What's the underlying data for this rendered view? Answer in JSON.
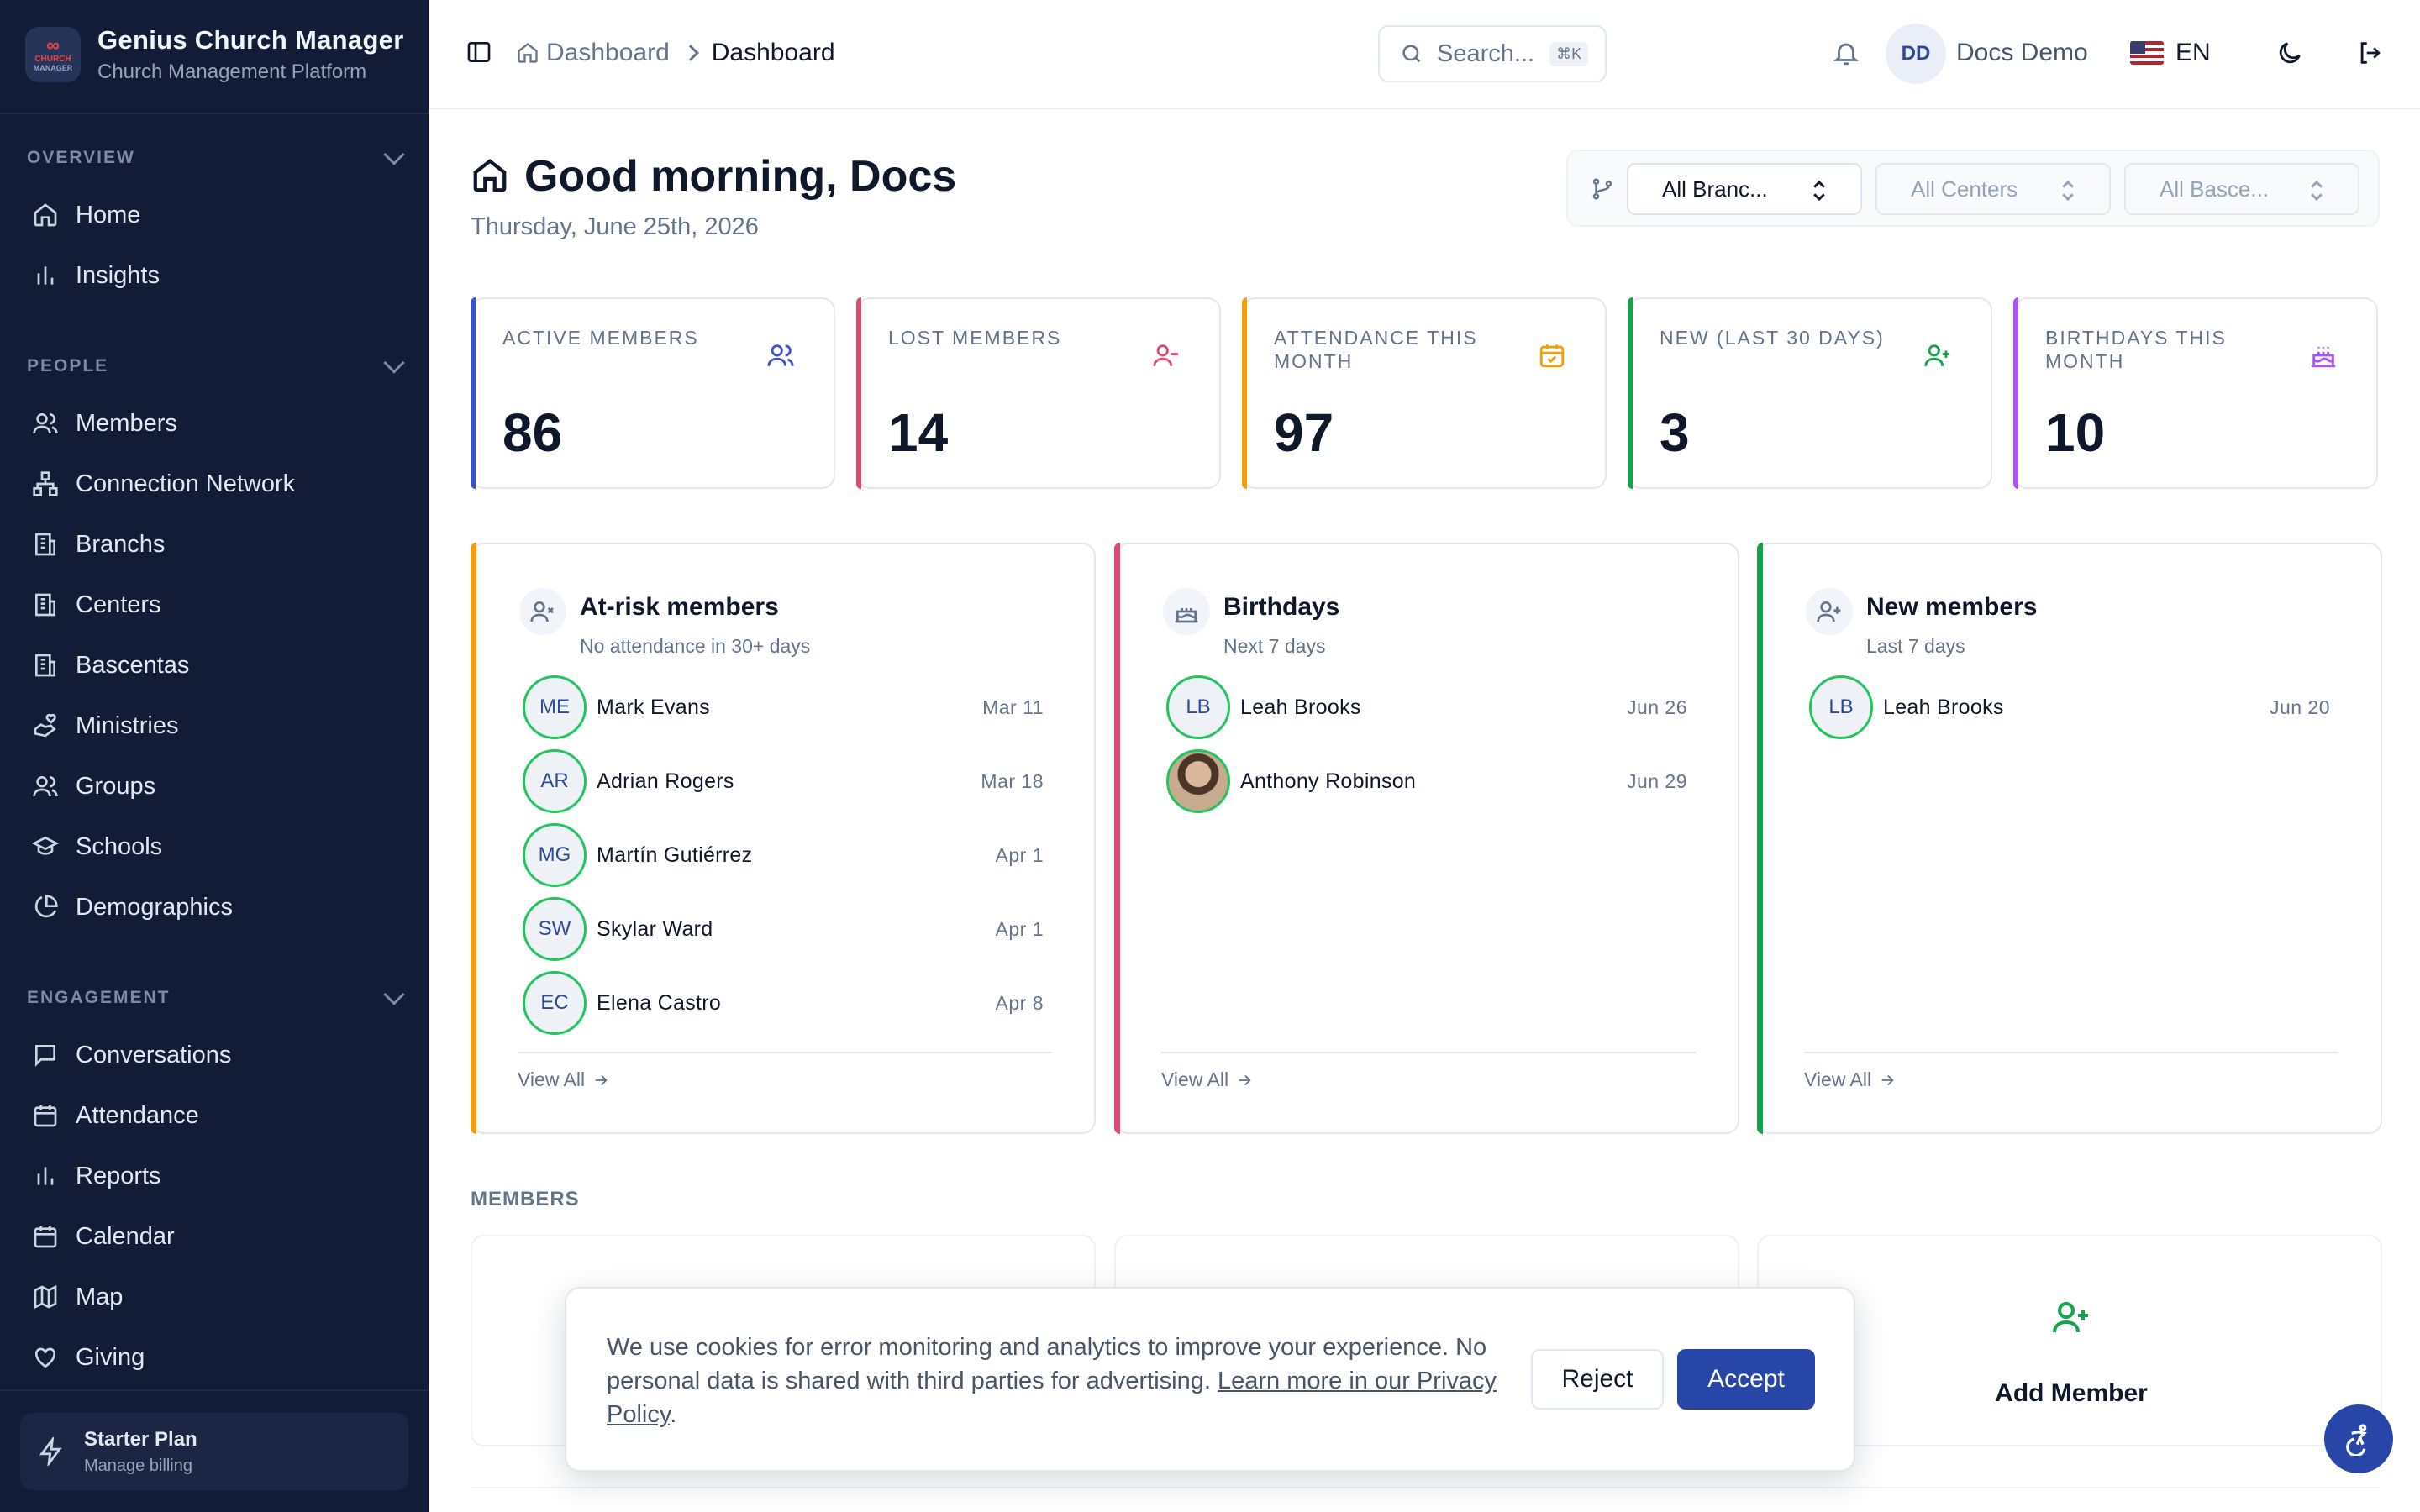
{
  "app": {
    "title": "Genius Church Manager",
    "subtitle": "Church Management Platform",
    "logo_top": "CHURCH",
    "logo_bottom": "MANAGER"
  },
  "sidebar": {
    "sections": [
      {
        "title": "OVERVIEW",
        "items": [
          {
            "label": "Home",
            "icon": "home-icon"
          },
          {
            "label": "Insights",
            "icon": "bar-chart-icon"
          }
        ]
      },
      {
        "title": "PEOPLE",
        "items": [
          {
            "label": "Members",
            "icon": "users-icon"
          },
          {
            "label": "Connection Network",
            "icon": "network-icon"
          },
          {
            "label": "Branchs",
            "icon": "building-icon"
          },
          {
            "label": "Centers",
            "icon": "building-icon"
          },
          {
            "label": "Bascentas",
            "icon": "building-icon"
          },
          {
            "label": "Ministries",
            "icon": "hand-heart-icon"
          },
          {
            "label": "Groups",
            "icon": "users-icon"
          },
          {
            "label": "Schools",
            "icon": "graduation-cap-icon"
          },
          {
            "label": "Demographics",
            "icon": "pie-chart-icon"
          }
        ]
      },
      {
        "title": "ENGAGEMENT",
        "items": [
          {
            "label": "Conversations",
            "icon": "message-icon"
          },
          {
            "label": "Attendance",
            "icon": "calendar-check-icon"
          },
          {
            "label": "Reports",
            "icon": "bar-chart-icon"
          },
          {
            "label": "Calendar",
            "icon": "calendar-icon"
          },
          {
            "label": "Map",
            "icon": "map-icon"
          },
          {
            "label": "Giving",
            "icon": "heart-icon"
          }
        ]
      }
    ],
    "plan": {
      "title": "Starter Plan",
      "subtitle": "Manage billing"
    }
  },
  "header": {
    "breadcrumb": [
      "Dashboard",
      "Dashboard"
    ],
    "search_placeholder": "Search...",
    "search_shortcut": "⌘K",
    "user_initials": "DD",
    "user_name": "Docs Demo",
    "language": "EN"
  },
  "greeting": {
    "title": "Good morning, Docs",
    "date": "Thursday, June 25th, 2026"
  },
  "filters": [
    "All Branc...",
    "All Centers",
    "All Basce..."
  ],
  "stats": [
    {
      "label": "ACTIVE MEMBERS",
      "value": "86",
      "color": "#3b55c9",
      "icon": "users-icon"
    },
    {
      "label": "LOST MEMBERS",
      "value": "14",
      "color": "#e04870",
      "icon": "user-minus-icon"
    },
    {
      "label": "ATTENDANCE THIS MONTH",
      "value": "97",
      "color": "#f59e0b",
      "icon": "calendar-check-icon"
    },
    {
      "label": "NEW (LAST 30 DAYS)",
      "value": "3",
      "color": "#16a34a",
      "icon": "user-plus-icon"
    },
    {
      "label": "BIRTHDAYS THIS MONTH",
      "value": "10",
      "color": "#a855f7",
      "icon": "cake-icon"
    }
  ],
  "cards": [
    {
      "title": "At-risk members",
      "subtitle": "No attendance in 30+ days",
      "color": "#f59e0b",
      "icon": "user-x-icon",
      "view_all": "View All",
      "rows": [
        {
          "initials": "ME",
          "name": "Mark Evans",
          "date": "Mar 11"
        },
        {
          "initials": "AR",
          "name": "Adrian Rogers",
          "date": "Mar 18"
        },
        {
          "initials": "MG",
          "name": "Martín Gutiérrez",
          "date": "Apr 1"
        },
        {
          "initials": "SW",
          "name": "Skylar Ward",
          "date": "Apr 1"
        },
        {
          "initials": "EC",
          "name": "Elena Castro",
          "date": "Apr 8"
        }
      ]
    },
    {
      "title": "Birthdays",
      "subtitle": "Next 7 days",
      "color": "#e0457b",
      "icon": "cake-icon",
      "view_all": "View All",
      "rows": [
        {
          "initials": "LB",
          "name": "Leah Brooks",
          "date": "Jun 26"
        },
        {
          "initials": "",
          "name": "Anthony Robinson",
          "date": "Jun 29",
          "photo": true
        }
      ]
    },
    {
      "title": "New members",
      "subtitle": "Last 7 days",
      "color": "#16a34a",
      "icon": "user-plus-icon",
      "view_all": "View All",
      "rows": [
        {
          "initials": "LB",
          "name": "Leah Brooks",
          "date": "Jun 20"
        }
      ]
    }
  ],
  "members": {
    "heading": "MEMBERS",
    "add_label": "Add Member"
  },
  "cookie": {
    "text": "We use cookies for error monitoring and analytics to improve your experience. No personal data is shared with third parties for advertising. ",
    "link": "Learn more in our Privacy Policy",
    "reject": "Reject",
    "accept": "Accept"
  }
}
